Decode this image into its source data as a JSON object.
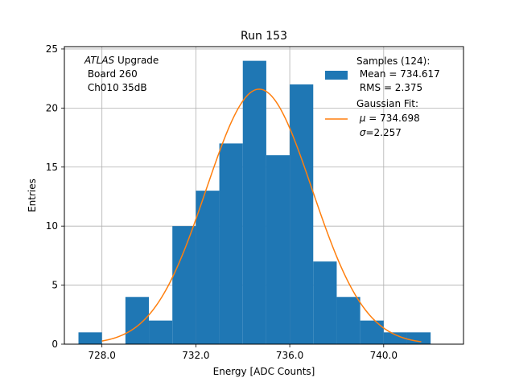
{
  "chart_data": {
    "type": "bar",
    "title": "Run 153",
    "xlabel": "Energy [ADC Counts]",
    "ylabel": "Entries",
    "xlim": [
      726.4,
      743.4
    ],
    "ylim": [
      0,
      25.2
    ],
    "grid": true,
    "x_ticks": [
      {
        "value": 728,
        "label": "728.0"
      },
      {
        "value": 732,
        "label": "732.0"
      },
      {
        "value": 736,
        "label": "736.0"
      },
      {
        "value": 740,
        "label": "740.0"
      }
    ],
    "y_ticks": [
      {
        "value": 0,
        "label": "0"
      },
      {
        "value": 5,
        "label": "5"
      },
      {
        "value": 10,
        "label": "10"
      },
      {
        "value": 15,
        "label": "15"
      },
      {
        "value": 20,
        "label": "20"
      },
      {
        "value": 25,
        "label": "25"
      }
    ],
    "histogram": {
      "name": "Samples",
      "bin_edges": [
        727,
        728,
        729,
        730,
        731,
        732,
        733,
        734,
        735,
        736,
        737,
        738,
        739,
        740,
        741,
        742
      ],
      "counts": [
        1,
        0,
        4,
        2,
        10,
        13,
        17,
        24,
        16,
        22,
        7,
        4,
        2,
        1,
        1
      ],
      "color": "#1f77b4"
    },
    "fit": {
      "name": "Gaussian Fit",
      "type": "gaussian",
      "mu": 734.698,
      "sigma": 2.257,
      "amplitude": 21.6,
      "x_range": [
        728,
        741.6
      ],
      "color": "#ff7f0e"
    },
    "annotation": {
      "line1_italic": "ATLAS",
      "line1_rest": " Upgrade",
      "line2": " Board 260",
      "line3": " Ch010 35dB"
    },
    "legend": {
      "position": "top-right",
      "samples": {
        "line1": "Samples (124):",
        "line2": " Mean = 734.617",
        "line3": " RMS = 2.375"
      },
      "fit": {
        "line1": "Gaussian Fit:",
        "line2_symbol": "μ",
        "line2_rest": " = 734.698",
        "line3_symbol": "σ",
        "line3_rest": "=2.257"
      }
    }
  }
}
